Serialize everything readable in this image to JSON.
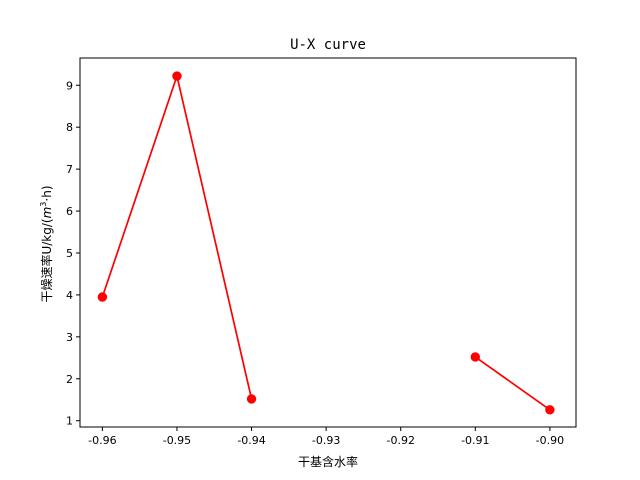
{
  "chart_data": {
    "type": "line",
    "title": "U-X curve",
    "xlabel": "干基含水率",
    "ylabel_prefix": "干燥速率U/kg/(",
    "ylabel_math_m": "m",
    "ylabel_math_sup": "3",
    "ylabel_suffix": "·h)",
    "xlim": [
      -0.963,
      -0.8965
    ],
    "ylim": [
      0.85,
      9.65
    ],
    "xticks": [
      -0.96,
      -0.95,
      -0.94,
      -0.93,
      -0.92,
      -0.91,
      -0.9
    ],
    "xtick_labels": [
      "-0.96",
      "-0.95",
      "-0.94",
      "-0.93",
      "-0.92",
      "-0.91",
      "-0.90"
    ],
    "yticks": [
      1,
      2,
      3,
      4,
      5,
      6,
      7,
      8,
      9
    ],
    "ytick_labels": [
      "1",
      "2",
      "3",
      "4",
      "5",
      "6",
      "7",
      "8",
      "9"
    ],
    "grid": false,
    "series": [
      {
        "color": "#ff0000",
        "marker": "circle",
        "segments": [
          {
            "x": [
              -0.96,
              -0.95,
              -0.94
            ],
            "y": [
              3.95,
              9.22,
              1.52
            ]
          },
          {
            "x": [
              -0.91,
              -0.9
            ],
            "y": [
              2.52,
              1.26
            ]
          }
        ]
      }
    ]
  }
}
